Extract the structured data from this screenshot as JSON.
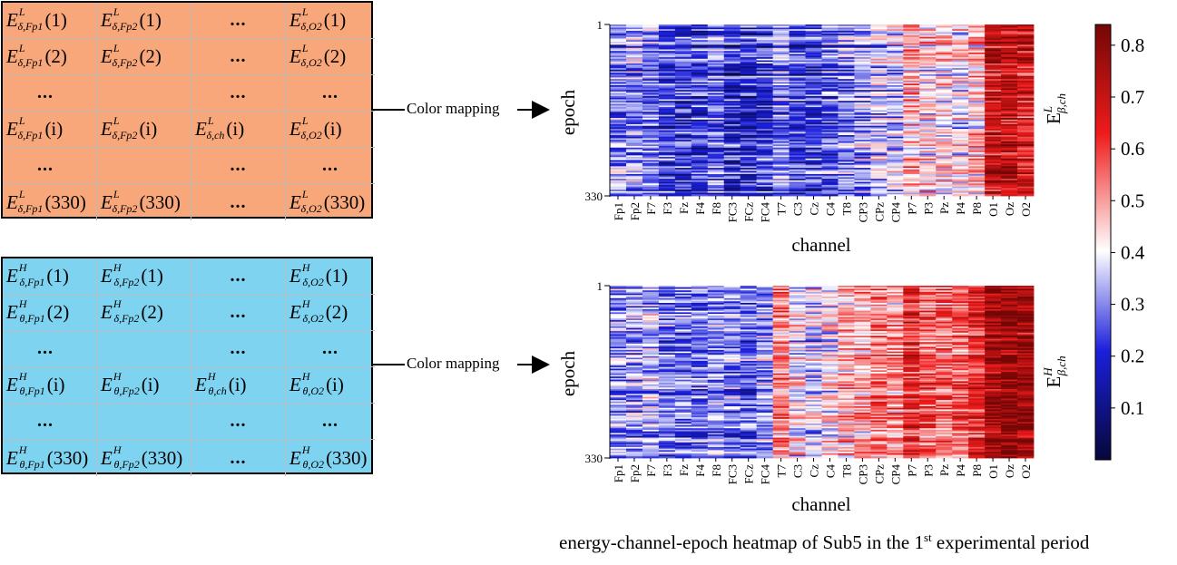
{
  "low_matrix": {
    "superscript": "L",
    "rows": [
      [
        {
          "sub": "δ,Fp1",
          "arg": "(1)"
        },
        {
          "sub": "δ,Fp2",
          "arg": "(1)"
        },
        {
          "dots": "..."
        },
        {
          "sub": "δ,O2",
          "arg": "(1)"
        }
      ],
      [
        {
          "sub": "δ,Fp1",
          "arg": "(2)"
        },
        {
          "sub": "δ,Fp2",
          "arg": "(2)"
        },
        {
          "dots": "..."
        },
        {
          "sub": "δ,O2",
          "arg": "(2)"
        }
      ],
      [
        {
          "dots": "..."
        },
        {
          "empty": true
        },
        {
          "dots": "..."
        },
        {
          "dots": "..."
        }
      ],
      [
        {
          "sub": "δ,Fp1",
          "arg": "(i)"
        },
        {
          "sub": "δ,Fp2",
          "arg": "(i)"
        },
        {
          "sub": "δ,ch",
          "arg": "(i)"
        },
        {
          "sub": "δ,O2",
          "arg": "(i)"
        }
      ],
      [
        {
          "dots": "..."
        },
        {
          "empty": true
        },
        {
          "dots": "..."
        },
        {
          "dots": "..."
        }
      ],
      [
        {
          "sub": "δ,Fp1",
          "arg": "(330)"
        },
        {
          "sub": "δ,Fp2",
          "arg": "(330)"
        },
        {
          "dots": "..."
        },
        {
          "sub": "δ,O2",
          "arg": "(330)"
        }
      ]
    ]
  },
  "high_matrix": {
    "superscript": "H",
    "rows": [
      [
        {
          "sub": "δ,Fp1",
          "arg": "(1)"
        },
        {
          "sub": "δ,Fp2",
          "arg": "(1)"
        },
        {
          "dots": "..."
        },
        {
          "sub": "δ,O2",
          "arg": "(1)"
        }
      ],
      [
        {
          "sub": "θ,Fp1",
          "arg": "(2)"
        },
        {
          "sub": "δ,Fp2",
          "arg": "(2)"
        },
        {
          "dots": "..."
        },
        {
          "sub": "δ,O2",
          "arg": "(2)"
        }
      ],
      [
        {
          "dots": "..."
        },
        {
          "empty": true
        },
        {
          "dots": "..."
        },
        {
          "dots": "..."
        }
      ],
      [
        {
          "sub": "θ,Fp1",
          "arg": "(i)"
        },
        {
          "sub": "θ,Fp2",
          "arg": "(i)"
        },
        {
          "sub": "θ,ch",
          "arg": "(i)"
        },
        {
          "sub": "θ,O2",
          "arg": "(i)"
        }
      ],
      [
        {
          "dots": "..."
        },
        {
          "empty": true
        },
        {
          "dots": "..."
        },
        {
          "dots": "..."
        }
      ],
      [
        {
          "sub": "θ,Fp1",
          "arg": "(330)"
        },
        {
          "sub": "θ,Fp2",
          "arg": "(330)"
        },
        {
          "dots": "..."
        },
        {
          "sub": "θ,O2",
          "arg": "(330)"
        }
      ]
    ]
  },
  "arrow_label": "Color mapping",
  "heatmaps": [
    {
      "id": "low",
      "ylabel": "epoch",
      "xlabel": "channel",
      "y_tick_labels": [
        "1",
        "330"
      ],
      "side_label_base": "E",
      "side_label_sup": "L",
      "side_label_sub": "β,ch",
      "channels": [
        "Fp1",
        "Fp2",
        "F7",
        "F3",
        "Fz",
        "F4",
        "F8",
        "FC3",
        "FCz",
        "FC4",
        "T7",
        "C3",
        "Cz",
        "C4",
        "T8",
        "CP3",
        "CPz",
        "CP4",
        "P7",
        "P3",
        "Pz",
        "P4",
        "P8",
        "O1",
        "Oz",
        "O2"
      ],
      "channel_mean_level": [
        0.3,
        0.32,
        0.28,
        0.22,
        0.22,
        0.22,
        0.26,
        0.2,
        0.2,
        0.22,
        0.3,
        0.22,
        0.22,
        0.26,
        0.3,
        0.32,
        0.35,
        0.36,
        0.48,
        0.44,
        0.42,
        0.4,
        0.46,
        0.7,
        0.7,
        0.66
      ],
      "epochs": 330
    },
    {
      "id": "high",
      "ylabel": "epoch",
      "xlabel": "channel",
      "y_tick_labels": [
        "1",
        "330"
      ],
      "side_label_base": "E",
      "side_label_sup": "H",
      "side_label_sub": "β,ch",
      "channels": [
        "Fp1",
        "Fp2",
        "F7",
        "F3",
        "Fz",
        "F4",
        "F8",
        "FC3",
        "FCz",
        "FC4",
        "T7",
        "C3",
        "Cz",
        "C4",
        "T8",
        "CP3",
        "CPz",
        "CP4",
        "P7",
        "P3",
        "Pz",
        "P4",
        "P8",
        "O1",
        "Oz",
        "O2"
      ],
      "channel_mean_level": [
        0.3,
        0.3,
        0.34,
        0.28,
        0.26,
        0.26,
        0.3,
        0.28,
        0.26,
        0.3,
        0.52,
        0.4,
        0.36,
        0.4,
        0.46,
        0.48,
        0.52,
        0.5,
        0.62,
        0.56,
        0.55,
        0.56,
        0.62,
        0.76,
        0.78,
        0.76
      ],
      "epochs": 330
    }
  ],
  "colorbar": {
    "ticks": [
      "0.1",
      "0.2",
      "0.3",
      "0.4",
      "0.5",
      "0.6",
      "0.7",
      "0.8"
    ],
    "tick_values": [
      0.1,
      0.2,
      0.3,
      0.4,
      0.5,
      0.6,
      0.7,
      0.8
    ],
    "range": [
      0.0,
      0.84
    ],
    "colors": [
      "#06073a",
      "#1b1fdb",
      "#ffffff",
      "#ef1b1b",
      "#740606"
    ]
  },
  "caption": {
    "text_before": "energy-channel-epoch heatmap of Sub5 in the 1",
    "sup": "st",
    "text_after": " experimental period"
  }
}
